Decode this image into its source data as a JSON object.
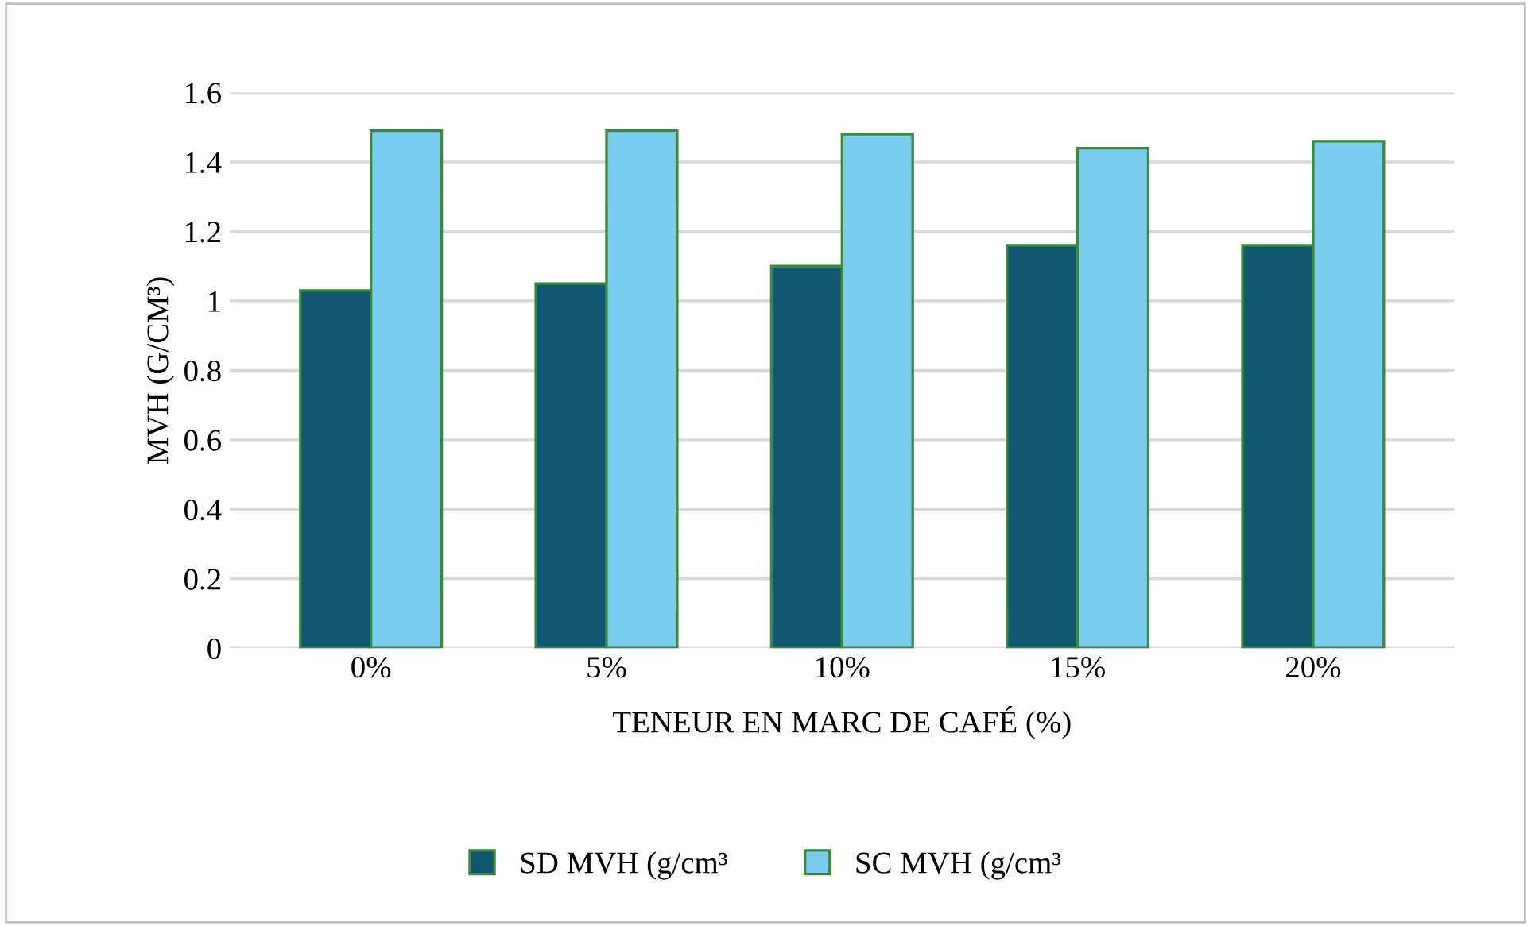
{
  "chart_data": {
    "type": "bar",
    "xlabel": "TENEUR EN MARC DE CAFÉ (%)",
    "ylabel": "MVH (G/CM³)",
    "categories": [
      "0%",
      "5%",
      "10%",
      "15%",
      "20%"
    ],
    "series": [
      {
        "name": "SD MVH (g/cm³",
        "color": "#0f5670",
        "values": [
          1.03,
          1.05,
          1.1,
          1.16,
          1.16
        ]
      },
      {
        "name": "SC MVH (g/cm³",
        "color": "#78cdef",
        "values": [
          1.49,
          1.49,
          1.48,
          1.44,
          1.46
        ]
      }
    ],
    "ylim": [
      0,
      1.6
    ],
    "yticks": [
      0,
      0.2,
      0.4,
      0.6,
      0.8,
      1,
      1.2,
      1.4,
      1.6
    ],
    "grid": "y",
    "legend": "bottom"
  }
}
